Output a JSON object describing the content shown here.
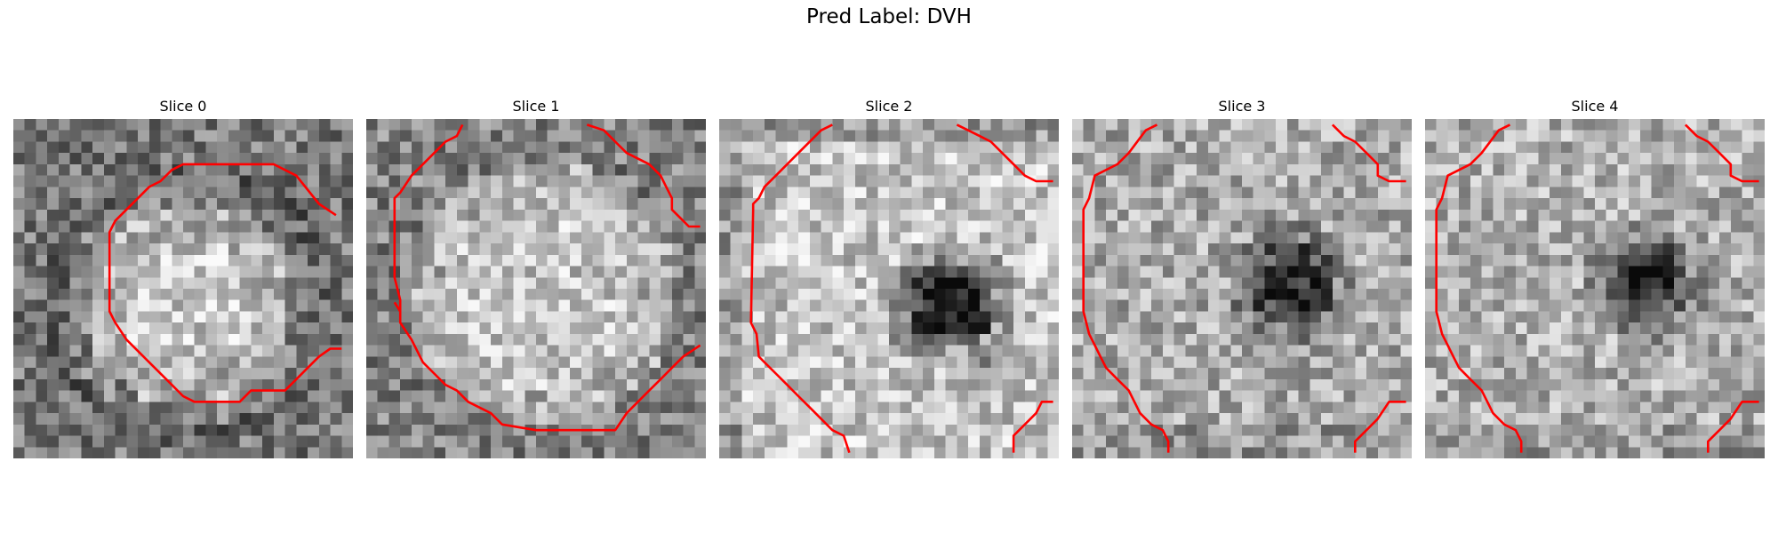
{
  "figure": {
    "title": "Pred Label: DVH"
  },
  "colors": {
    "contour": "#ff0000",
    "background": "#ffffff"
  },
  "panels": [
    {
      "title": "Slice 0",
      "image": "noisy-grayscale-ring-with-red-octagon-contour"
    },
    {
      "title": "Slice 1",
      "image": "noisy-grayscale-disk-with-red-octagon-contour"
    },
    {
      "title": "Slice 2",
      "image": "bright-grayscale-region-with-dark-spot-and-red-contour"
    },
    {
      "title": "Slice 3",
      "image": "grayscale-region-with-dark-spot-and-red-contour"
    },
    {
      "title": "Slice 4",
      "image": "grayscale-region-with-dark-spot-and-red-contour"
    }
  ]
}
